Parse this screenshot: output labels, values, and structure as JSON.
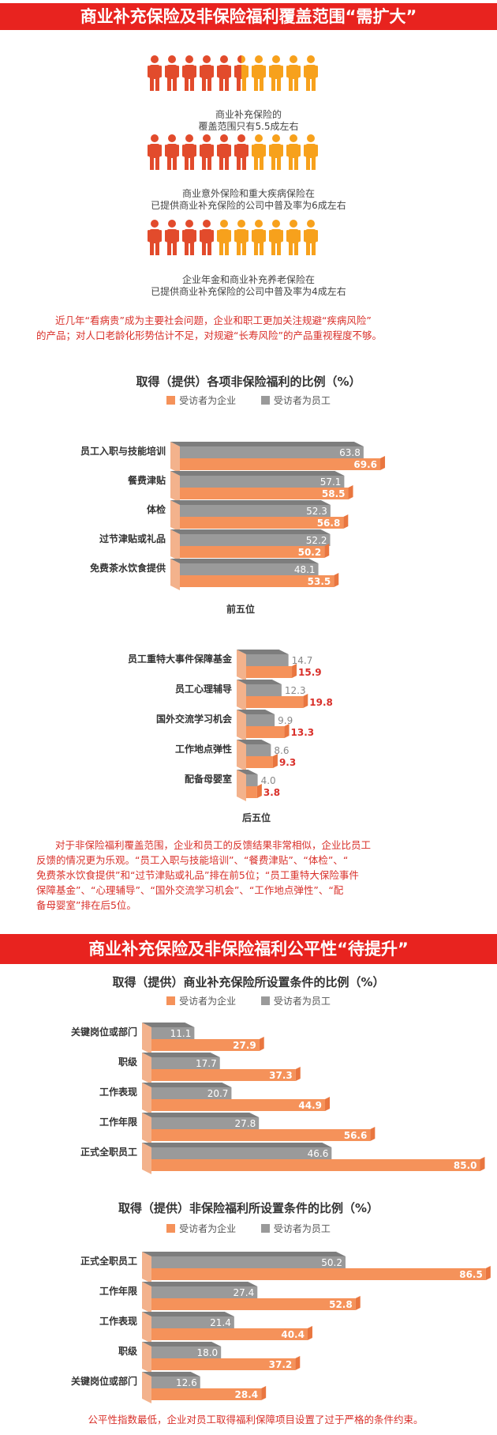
{
  "section1": {
    "banner": "商业补充保险及非保险福利覆盖范围“需扩大”",
    "people": [
      {
        "filled_of_ten": 5.5,
        "lines": [
          "商业补充保险的",
          "覆盖范围只有5.5成左右"
        ]
      },
      {
        "filled_of_ten": 6,
        "lines": [
          "商业意外保险和重大疾病保险在",
          "已提供商业补充保险的公司中普及率为6成左右"
        ]
      },
      {
        "filled_of_ten": 4,
        "lines": [
          "企业年金和商业补充养老保险在",
          "已提供商业补充保险的公司中普及率为4成左右"
        ]
      }
    ],
    "note": [
      "近几年“看病贵”成为主要社会问题，企业和职工更加关注规避“疾病风险”",
      "的产品；对人口老龄化形势估计不足，对规避“长寿风险”的产品重视程度不够。"
    ],
    "note2": [
      "对于非保险福利覆盖范围，企业和员工的反馈结果非常相似，企业比员工",
      "反馈的情况更为乐观。“员工入职与技能培训”、“餐费津贴”、“体检”、“",
      "免费茶水饮食提供”和“过节津贴或礼品”排在前5位；“员工重特大保险事件",
      "保障基金”、“心理辅导”、“国外交流学习机会”、“工作地点弹性”、“配",
      "备母婴室”排在后5位。"
    ]
  },
  "section2": {
    "banner": "商业补充保险及非保险福利公平性“待提升”",
    "note": "公平性指数最低，企业对员工取得福利保障项目设置了过于严格的条件约束。"
  },
  "legend": {
    "company": "受访者为企业",
    "employee": "受访者为员工"
  },
  "colors": {
    "company": "#f5925a",
    "employee": "#9a9a9a",
    "red": "#e8231f",
    "people_gray": "#e24b2c",
    "people_orange": "#f7a11c"
  },
  "chart_data": [
    {
      "type": "bar",
      "title": "取得（提供）各项非保险福利的比例（%）",
      "group_labels": [
        "前五位",
        "后五位"
      ],
      "categories": [
        "员工入职与技能培训",
        "餐费津贴",
        "体检",
        "过节津贴或礼品",
        "免费茶水饮食提供",
        "员工重特大事件保障基金",
        "员工心理辅导",
        "国外交流学习机会",
        "工作地点弹性",
        "配备母婴室"
      ],
      "series": [
        {
          "name": "受访者为员工",
          "values": [
            63.8,
            57.1,
            52.3,
            52.2,
            48.1,
            14.7,
            12.3,
            9.9,
            8.6,
            4.0
          ]
        },
        {
          "name": "受访者为企业",
          "values": [
            69.6,
            58.5,
            56.8,
            50.2,
            53.5,
            15.9,
            19.8,
            13.3,
            9.3,
            3.8
          ]
        }
      ],
      "value_labels": {
        "employee": [
          "63.8",
          "57.1",
          "52.3",
          "52.2",
          "48.1",
          "14.7",
          "12.3",
          "9.9",
          "8.6",
          "4.0"
        ],
        "company": [
          "69.6",
          "58.5",
          "56.8",
          "50.2",
          "53.5",
          "15.9",
          "19.8",
          "13.3",
          "9.3",
          "3.8"
        ]
      }
    },
    {
      "type": "bar",
      "title": "取得（提供）商业补充保险所设置条件的比例（%）",
      "categories": [
        "关键岗位或部门",
        "职级",
        "工作表现",
        "工作年限",
        "正式全职员工"
      ],
      "series": [
        {
          "name": "受访者为员工",
          "values": [
            11.1,
            17.7,
            20.7,
            27.8,
            46.6
          ]
        },
        {
          "name": "受访者为企业",
          "values": [
            27.9,
            37.3,
            44.9,
            56.6,
            85.0
          ]
        }
      ],
      "value_labels": {
        "employee": [
          "11.1",
          "17.7",
          "20.7",
          "27.8",
          "46.6"
        ],
        "company": [
          "27.9",
          "37.3",
          "44.9",
          "56.6",
          "85.0"
        ]
      }
    },
    {
      "type": "bar",
      "title": "取得（提供）非保险福利所设置条件的比例（%）",
      "categories": [
        "正式全职员工",
        "工作年限",
        "工作表现",
        "职级",
        "关键岗位或部门"
      ],
      "series": [
        {
          "name": "受访者为员工",
          "values": [
            50.2,
            27.4,
            21.4,
            18.0,
            12.6
          ]
        },
        {
          "name": "受访者为企业",
          "values": [
            86.5,
            52.8,
            40.4,
            37.2,
            28.4
          ]
        }
      ],
      "value_labels": {
        "employee": [
          "50.2",
          "27.4",
          "21.4",
          "18.0",
          "12.6"
        ],
        "company": [
          "86.5",
          "52.8",
          "40.4",
          "37.2",
          "28.4"
        ]
      }
    }
  ]
}
